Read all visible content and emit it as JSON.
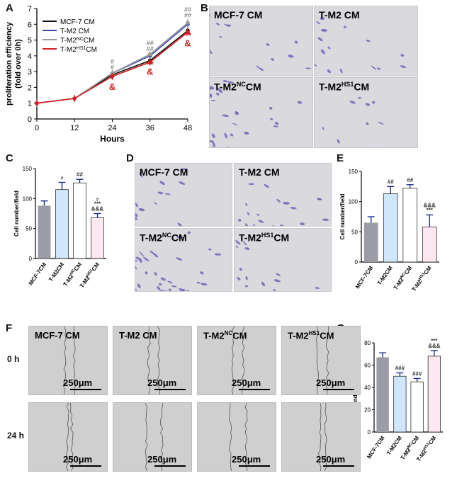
{
  "panels": {
    "A": "A",
    "B": "B",
    "C": "C",
    "D": "D",
    "E": "E",
    "F": "F",
    "G": "G"
  },
  "colors": {
    "mcf7": "#111111",
    "tm2": "#3a4aa8",
    "tm2nc": "#9a9a9a",
    "tm2hs1": "#d42020",
    "bar_mcf7": "#9c9ca6",
    "bar_tm2": "#cfe6fb",
    "bar_tm2nc": "#ffffff",
    "bar_tm2hs1": "#fbe8f0",
    "err": "#1f2f8a",
    "sig_red": "#d42020"
  },
  "chart_data": [
    {
      "panel": "A",
      "type": "line",
      "xlabel": "Hours",
      "ylabel": "proliferation efficiency",
      "ylabel2": "(fold over 0h)",
      "x": [
        0,
        12,
        24,
        36,
        48
      ],
      "xticks": [
        "0",
        "12",
        "24",
        "36",
        "48"
      ],
      "yticks": [
        "0",
        "1",
        "2",
        "3",
        "4",
        "5",
        "6",
        "7"
      ],
      "xlim": [
        0,
        48
      ],
      "ylim": [
        0,
        7
      ],
      "legend_position": "top-left",
      "series": [
        {
          "name": "MCF-7 CM",
          "values": [
            1,
            1.3,
            2.8,
            3.7,
            5.6
          ]
        },
        {
          "name": "T-M2 CM",
          "values": [
            1,
            1.3,
            2.9,
            4.0,
            6.0
          ]
        },
        {
          "name": "T-M2NC CM",
          "values": [
            1,
            1.3,
            2.9,
            4.1,
            6.1
          ]
        },
        {
          "name": "T-M2HS1 CM",
          "values": [
            1,
            1.3,
            2.7,
            3.6,
            5.5
          ]
        }
      ],
      "legend": [
        {
          "base": "MCF-7 CM",
          "sup": "",
          "tail": ""
        },
        {
          "base": "T-M2 CM",
          "sup": "",
          "tail": ""
        },
        {
          "base": "T-M2",
          "sup": "NC",
          "tail": "CM"
        },
        {
          "base": "T-M2",
          "sup": "HS1",
          "tail": "CM"
        }
      ],
      "annotations": [
        {
          "x": 24,
          "y": 3.5,
          "text": "#",
          "color": "gray"
        },
        {
          "x": 24,
          "y": 3.15,
          "text": "#",
          "color": "gray"
        },
        {
          "x": 24,
          "y": 2.35,
          "text": "*",
          "color": "red"
        },
        {
          "x": 24,
          "y": 1.85,
          "text": "&",
          "color": "red"
        },
        {
          "x": 36,
          "y": 4.7,
          "text": "##",
          "color": "gray"
        },
        {
          "x": 36,
          "y": 4.3,
          "text": "##",
          "color": "gray"
        },
        {
          "x": 36,
          "y": 3.25,
          "text": "**",
          "color": "red"
        },
        {
          "x": 36,
          "y": 2.8,
          "text": "&",
          "color": "red"
        },
        {
          "x": 48,
          "y": 6.8,
          "text": "##",
          "color": "gray"
        },
        {
          "x": 48,
          "y": 6.45,
          "text": "##",
          "color": "gray"
        },
        {
          "x": 48,
          "y": 5.1,
          "text": "**",
          "color": "red"
        },
        {
          "x": 48,
          "y": 4.6,
          "text": "&",
          "color": "red"
        }
      ]
    },
    {
      "panel": "C",
      "type": "bar",
      "ylabel": "Cell number/field",
      "categories": [
        "MCF-7CM",
        "T-M2CM",
        "T-M2NC CM",
        "T-M2HS1 CM"
      ],
      "category_parts": [
        {
          "base": "MCF-7CM",
          "sup": "",
          "tail": ""
        },
        {
          "base": "T-M2CM",
          "sup": "",
          "tail": ""
        },
        {
          "base": "T-M2",
          "sup": "NC",
          "tail": "CM"
        },
        {
          "base": "T-M2",
          "sup": "HS1",
          "tail": "CM"
        }
      ],
      "values": [
        88,
        115,
        126,
        68
      ],
      "errors": [
        8,
        12,
        6,
        7
      ],
      "ylim": [
        0,
        150
      ],
      "yticks": [
        "0",
        "50",
        "100",
        "150"
      ],
      "sig": [
        [],
        [
          "#"
        ],
        [
          "##"
        ],
        [
          "#",
          "***",
          "&&&"
        ]
      ]
    },
    {
      "panel": "E",
      "type": "bar",
      "ylabel": "Cell number/field",
      "categories": [
        "MCF-7CM",
        "T-M2CM",
        "T-M2NC CM",
        "T-M2HS1 CM"
      ],
      "category_parts": [
        {
          "base": "MCF-7CM",
          "sup": "",
          "tail": ""
        },
        {
          "base": "T-M2CM",
          "sup": "",
          "tail": ""
        },
        {
          "base": "T-M2",
          "sup": "NC",
          "tail": "CM"
        },
        {
          "base": "T-M2",
          "sup": "HS1",
          "tail": "CM"
        }
      ],
      "values": [
        65,
        113,
        122,
        58
      ],
      "errors": [
        10,
        12,
        6,
        20
      ],
      "ylim": [
        0,
        150
      ],
      "yticks": [
        "0",
        "50",
        "100",
        "150"
      ],
      "sig": [
        [],
        [
          "##"
        ],
        [
          "##"
        ],
        [
          "&&&",
          "***"
        ]
      ]
    },
    {
      "panel": "G",
      "type": "bar",
      "ylabel": "Wound recovery(%)",
      "categories": [
        "MCF-7CM",
        "T-M2CM",
        "T-M2NC CM",
        "T-M2HS1 CM"
      ],
      "category_parts": [
        {
          "base": "MCF-7CM",
          "sup": "",
          "tail": ""
        },
        {
          "base": "T-M2CM",
          "sup": "",
          "tail": ""
        },
        {
          "base": "T-M2",
          "sup": "NC",
          "tail": "CM"
        },
        {
          "base": "T-M2",
          "sup": "HS1",
          "tail": "CM"
        }
      ],
      "values": [
        67,
        50,
        45,
        68
      ],
      "errors": [
        4,
        3,
        3,
        5
      ],
      "ylim": [
        0,
        80
      ],
      "yticks": [
        "0",
        "20",
        "40",
        "60",
        "80"
      ],
      "sig": [
        [],
        [
          "###"
        ],
        [
          "###"
        ],
        [
          "***",
          "&&&"
        ]
      ]
    }
  ],
  "images": {
    "B": [
      {
        "base": "MCF-7 CM",
        "sup": "",
        "tail": ""
      },
      {
        "base": "T-M2 CM",
        "sup": "",
        "tail": ""
      },
      {
        "base": "T-M2",
        "sup": "NC",
        "tail": "CM"
      },
      {
        "base": "T-M2",
        "sup": "HS1",
        "tail": "CM"
      }
    ],
    "D": [
      {
        "base": "MCF-7 CM",
        "sup": "",
        "tail": ""
      },
      {
        "base": "T-M2 CM",
        "sup": "",
        "tail": ""
      },
      {
        "base": "T-M2",
        "sup": "NC",
        "tail": "CM"
      },
      {
        "base": "T-M2",
        "sup": "HS1",
        "tail": "CM"
      }
    ],
    "F": [
      {
        "base": "MCF-7 CM",
        "sup": "",
        "tail": ""
      },
      {
        "base": "T-M2 CM",
        "sup": "",
        "tail": ""
      },
      {
        "base": "T-M2",
        "sup": "NC",
        "tail": "CM"
      },
      {
        "base": "T-M2",
        "sup": "HS1",
        "tail": "CM"
      }
    ],
    "F_rows": [
      "0 h",
      "24 h"
    ],
    "F_scale": "250μm"
  }
}
